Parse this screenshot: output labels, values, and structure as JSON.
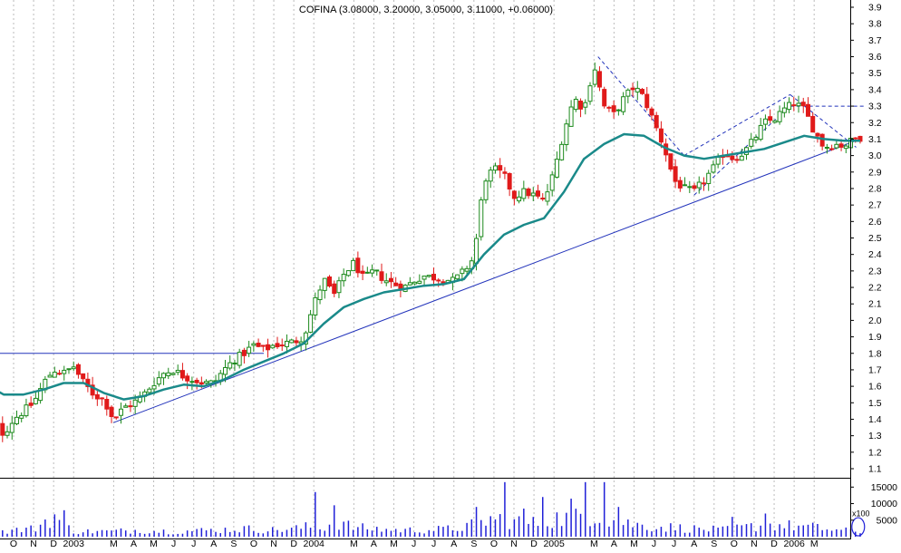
{
  "chart_data": {
    "type": "candlestick",
    "title": "COFINA (3.08000, 3.20000, 3.05000, 3.11000, +0.06000)",
    "colors": {
      "up": "#1d8a1d",
      "down": "#e01a1a",
      "ma": "#1a8a8a",
      "trendline": "#2233bb",
      "volume": "#1f1fd8",
      "grid": "#bbbbbb"
    },
    "price_axis": {
      "range": [
        1.1,
        3.9
      ],
      "ticks": [
        "1.1",
        "1.2",
        "1.3",
        "1.4",
        "1.5",
        "1.6",
        "1.7",
        "1.8",
        "1.9",
        "2.0",
        "2.1",
        "2.2",
        "2.3",
        "2.4",
        "2.5",
        "2.6",
        "2.7",
        "2.8",
        "2.9",
        "3.0",
        "3.1",
        "3.2",
        "3.3",
        "3.4",
        "3.5",
        "3.6",
        "3.7",
        "3.8",
        "3.9"
      ]
    },
    "volume_axis": {
      "range": [
        0,
        17000
      ],
      "ticks": [
        "15000",
        "10000",
        "5000"
      ],
      "unit_label": "x100"
    },
    "time_axis": {
      "start_index": -1.5,
      "end_index": 39.8,
      "ticks": [
        "O",
        "N",
        "D",
        "2003",
        "M",
        "A",
        "M",
        "J",
        "J",
        "A",
        "S",
        "O",
        "N",
        "D",
        "2004",
        "M",
        "A",
        "M",
        "J",
        "J",
        "A",
        "S",
        "O",
        "N",
        "D",
        "2005",
        "M",
        "A",
        "M",
        "J",
        "J",
        "A",
        "S",
        "O",
        "N",
        "D",
        "2006",
        "M"
      ],
      "tick_index": [
        0,
        1,
        2,
        3,
        5,
        6,
        7,
        8,
        9,
        10,
        11,
        12,
        13,
        14,
        15,
        17,
        18,
        19,
        20,
        21,
        22,
        23,
        24,
        25,
        26,
        27,
        29,
        30,
        31,
        32,
        33,
        34,
        35,
        36,
        37,
        38,
        39,
        40
      ]
    },
    "price_anchors": [
      [
        -1.5,
        1.45
      ],
      [
        -1.0,
        1.38
      ],
      [
        -0.5,
        1.31
      ],
      [
        0.0,
        1.4
      ],
      [
        0.5,
        1.45
      ],
      [
        1.0,
        1.5
      ],
      [
        1.5,
        1.62
      ],
      [
        2.0,
        1.7
      ],
      [
        2.5,
        1.68
      ],
      [
        3.0,
        1.72
      ],
      [
        3.5,
        1.62
      ],
      [
        4.0,
        1.55
      ],
      [
        4.5,
        1.52
      ],
      [
        5.0,
        1.4
      ],
      [
        5.5,
        1.47
      ],
      [
        6.0,
        1.5
      ],
      [
        6.5,
        1.55
      ],
      [
        7.0,
        1.62
      ],
      [
        7.5,
        1.68
      ],
      [
        8.0,
        1.7
      ],
      [
        8.5,
        1.66
      ],
      [
        9.0,
        1.64
      ],
      [
        9.5,
        1.62
      ],
      [
        10.0,
        1.62
      ],
      [
        10.5,
        1.7
      ],
      [
        11.0,
        1.76
      ],
      [
        11.5,
        1.8
      ],
      [
        12.0,
        1.85
      ],
      [
        12.5,
        1.82
      ],
      [
        13.0,
        1.85
      ],
      [
        13.5,
        1.86
      ],
      [
        14.0,
        1.87
      ],
      [
        14.5,
        1.9
      ],
      [
        15.0,
        2.1
      ],
      [
        15.5,
        2.25
      ],
      [
        16.0,
        2.15
      ],
      [
        16.5,
        2.28
      ],
      [
        17.0,
        2.35
      ],
      [
        17.5,
        2.25
      ],
      [
        18.0,
        2.3
      ],
      [
        18.5,
        2.25
      ],
      [
        19.0,
        2.22
      ],
      [
        19.5,
        2.2
      ],
      [
        20.0,
        2.24
      ],
      [
        20.5,
        2.27
      ],
      [
        21.0,
        2.26
      ],
      [
        21.5,
        2.25
      ],
      [
        22.0,
        2.24
      ],
      [
        22.5,
        2.3
      ],
      [
        23.0,
        2.38
      ],
      [
        23.5,
        2.85
      ],
      [
        24.0,
        2.92
      ],
      [
        24.5,
        2.88
      ],
      [
        25.0,
        2.75
      ],
      [
        25.5,
        2.78
      ],
      [
        26.0,
        2.76
      ],
      [
        26.5,
        2.72
      ],
      [
        27.0,
        2.9
      ],
      [
        27.5,
        3.15
      ],
      [
        28.0,
        3.35
      ],
      [
        28.5,
        3.28
      ],
      [
        29.0,
        3.55
      ],
      [
        29.5,
        3.3
      ],
      [
        30.0,
        3.25
      ],
      [
        30.5,
        3.35
      ],
      [
        31.0,
        3.42
      ],
      [
        31.5,
        3.35
      ],
      [
        32.0,
        3.2
      ],
      [
        32.5,
        3.05
      ],
      [
        33.0,
        2.85
      ],
      [
        33.5,
        2.8
      ],
      [
        34.0,
        2.78
      ],
      [
        34.5,
        2.85
      ],
      [
        35.0,
        2.93
      ],
      [
        35.5,
        3.02
      ],
      [
        36.0,
        2.98
      ],
      [
        36.5,
        3.02
      ],
      [
        37.0,
        3.1
      ],
      [
        37.5,
        3.2
      ],
      [
        38.0,
        3.22
      ],
      [
        38.5,
        3.28
      ],
      [
        39.0,
        3.32
      ],
      [
        39.5,
        3.28
      ],
      [
        40.0,
        3.15
      ],
      [
        40.5,
        3.05
      ],
      [
        41.0,
        3.07
      ],
      [
        41.5,
        3.06
      ],
      [
        42.0,
        3.1
      ],
      [
        42.3,
        3.11
      ]
    ],
    "ma_anchors": [
      [
        -1.5,
        1.62
      ],
      [
        -0.5,
        1.55
      ],
      [
        0.5,
        1.55
      ],
      [
        1.5,
        1.58
      ],
      [
        2.5,
        1.62
      ],
      [
        3.5,
        1.62
      ],
      [
        4.5,
        1.56
      ],
      [
        5.5,
        1.52
      ],
      [
        6.5,
        1.54
      ],
      [
        7.5,
        1.58
      ],
      [
        8.5,
        1.61
      ],
      [
        9.5,
        1.6
      ],
      [
        10.5,
        1.64
      ],
      [
        11.5,
        1.7
      ],
      [
        12.5,
        1.75
      ],
      [
        13.5,
        1.8
      ],
      [
        14.5,
        1.86
      ],
      [
        15.5,
        1.98
      ],
      [
        16.5,
        2.08
      ],
      [
        17.5,
        2.13
      ],
      [
        18.5,
        2.17
      ],
      [
        19.5,
        2.19
      ],
      [
        20.5,
        2.21
      ],
      [
        21.5,
        2.22
      ],
      [
        22.5,
        2.25
      ],
      [
        23.5,
        2.4
      ],
      [
        24.5,
        2.52
      ],
      [
        25.5,
        2.58
      ],
      [
        26.5,
        2.62
      ],
      [
        27.5,
        2.78
      ],
      [
        28.5,
        2.98
      ],
      [
        29.5,
        3.07
      ],
      [
        30.5,
        3.13
      ],
      [
        31.5,
        3.12
      ],
      [
        32.5,
        3.05
      ],
      [
        33.5,
        3.0
      ],
      [
        34.5,
        2.98
      ],
      [
        35.5,
        3.0
      ],
      [
        36.5,
        3.02
      ],
      [
        37.5,
        3.04
      ],
      [
        38.5,
        3.08
      ],
      [
        39.5,
        3.12
      ],
      [
        40.5,
        3.1
      ],
      [
        41.5,
        3.09
      ],
      [
        42.3,
        3.09
      ]
    ],
    "candle_range_index": [
      -1.5,
      42.3
    ],
    "candle_count": 186,
    "volume_anchors": [
      [
        -1.5,
        1200
      ],
      [
        0.0,
        2500
      ],
      [
        1.0,
        3000
      ],
      [
        2.0,
        8000
      ],
      [
        3.0,
        2000
      ],
      [
        5.0,
        2000
      ],
      [
        6.0,
        2500
      ],
      [
        8.0,
        2000
      ],
      [
        10.0,
        2500
      ],
      [
        11.5,
        3000
      ],
      [
        13.0,
        2500
      ],
      [
        14.0,
        3000
      ],
      [
        15.0,
        4000
      ],
      [
        15.5,
        3500
      ],
      [
        16.0,
        6000
      ],
      [
        17.0,
        3500
      ],
      [
        18.0,
        3000
      ],
      [
        19.0,
        2500
      ],
      [
        20.5,
        2500
      ],
      [
        22.0,
        3000
      ],
      [
        23.0,
        4500
      ],
      [
        24.0,
        7000
      ],
      [
        25.0,
        6000
      ],
      [
        25.5,
        5500
      ],
      [
        26.0,
        5000
      ],
      [
        27.0,
        7000
      ],
      [
        28.0,
        7000
      ],
      [
        29.0,
        9000
      ],
      [
        30.0,
        6000
      ],
      [
        31.5,
        4000
      ],
      [
        33.0,
        3500
      ],
      [
        34.0,
        3000
      ],
      [
        35.5,
        2500
      ],
      [
        37.0,
        4000
      ],
      [
        38.0,
        4500
      ],
      [
        39.0,
        4000
      ],
      [
        40.0,
        3500
      ],
      [
        41.0,
        2500
      ],
      [
        42.3,
        2000
      ]
    ],
    "volume_spikes": [
      [
        2.5,
        8000
      ],
      [
        15.0,
        13500
      ],
      [
        24.5,
        16500
      ],
      [
        25.5,
        8500
      ],
      [
        27.8,
        11500
      ],
      [
        28.5,
        16500
      ],
      [
        29.5,
        16500
      ],
      [
        30.2,
        9000
      ],
      [
        16.0,
        9500
      ],
      [
        23.2,
        9000
      ],
      [
        26.5,
        12000
      ],
      [
        36.0,
        6000
      ],
      [
        37.5,
        7000
      ]
    ],
    "trendlines": [
      {
        "from": [
          -1.5,
          1.8
        ],
        "to": [
          12.5,
          1.8
        ],
        "style": "solid"
      },
      {
        "from": [
          5.0,
          1.38
        ],
        "to": [
          42.3,
          3.1
        ],
        "style": "solid"
      },
      {
        "from": [
          29.2,
          3.6
        ],
        "to": [
          33.5,
          3.0
        ],
        "style": "dashed"
      },
      {
        "from": [
          33.5,
          3.0
        ],
        "to": [
          38.8,
          3.37
        ],
        "style": "dashed"
      },
      {
        "from": [
          38.8,
          3.3
        ],
        "to": [
          42.5,
          3.3
        ],
        "style": "dashed"
      },
      {
        "from": [
          38.8,
          3.37
        ],
        "to": [
          42.1,
          3.05
        ],
        "style": "dashed"
      },
      {
        "from": [
          34.0,
          2.76
        ],
        "to": [
          38.6,
          3.28
        ],
        "style": "dashed"
      }
    ],
    "highlight_marker": {
      "index": 42.2,
      "volume": 3000
    }
  }
}
